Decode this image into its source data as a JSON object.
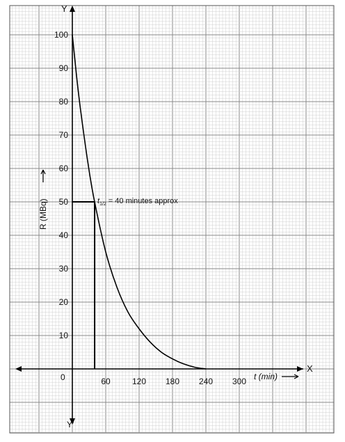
{
  "chart_data": {
    "type": "line",
    "xlabel": "t (min)",
    "ylabel": "R (MBq)",
    "x_axis_letter": "X",
    "y_axis_letter": "Y",
    "y_axis_neg_letter": "Y'",
    "origin_label": "0",
    "xlim": [
      -105,
      340
    ],
    "ylim": [
      -17,
      110
    ],
    "x_ticks": [
      60,
      120,
      180,
      240,
      300
    ],
    "y_ticks": [
      10,
      20,
      30,
      40,
      50,
      60,
      70,
      80,
      90,
      100
    ],
    "grid": true,
    "series": [
      {
        "x": [
          0,
          10,
          20,
          30,
          40,
          60,
          80,
          100,
          120,
          140,
          160,
          180,
          200,
          220,
          240
        ],
        "y": [
          100,
          84,
          71,
          59.5,
          50,
          35,
          24.5,
          17,
          12,
          8,
          5,
          3,
          1.5,
          0.5,
          0
        ]
      }
    ],
    "annotation": {
      "prefix": "t",
      "subscript": "1/2",
      "text": "= 40 minutes approx",
      "x": 40,
      "y": 50
    }
  }
}
